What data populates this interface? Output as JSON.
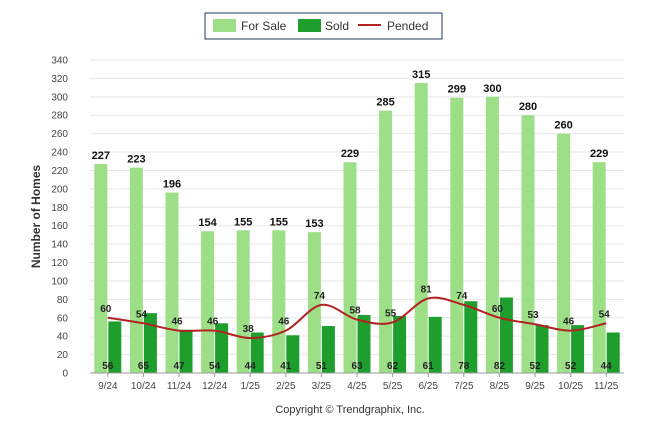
{
  "chart_data": {
    "type": "bar",
    "title": "",
    "xlabel": "",
    "ylabel": "Number of Homes",
    "ylim": [
      0,
      340
    ],
    "ytick_step": 20,
    "grid": true,
    "legend_position": "top-center",
    "categories": [
      "9/24",
      "10/24",
      "11/24",
      "12/24",
      "1/25",
      "2/25",
      "3/25",
      "4/25",
      "5/25",
      "6/25",
      "7/25",
      "8/25",
      "9/25",
      "10/25",
      "11/25"
    ],
    "series": [
      {
        "name": "For Sale",
        "type": "bar",
        "color": "#9ddf87",
        "values": [
          227,
          223,
          196,
          154,
          155,
          155,
          153,
          229,
          285,
          315,
          299,
          300,
          280,
          260,
          229
        ]
      },
      {
        "name": "Sold",
        "type": "bar",
        "color": "#1e9e2d",
        "values": [
          56,
          65,
          47,
          54,
          44,
          41,
          51,
          63,
          62,
          61,
          78,
          82,
          52,
          52,
          44
        ]
      },
      {
        "name": "Pended",
        "type": "line",
        "color": "#b22222",
        "values": [
          60,
          54,
          46,
          46,
          38,
          46,
          74,
          58,
          55,
          81,
          74,
          60,
          53,
          46,
          54
        ]
      }
    ],
    "footer": "Copyright © Trendgraphix, Inc."
  }
}
